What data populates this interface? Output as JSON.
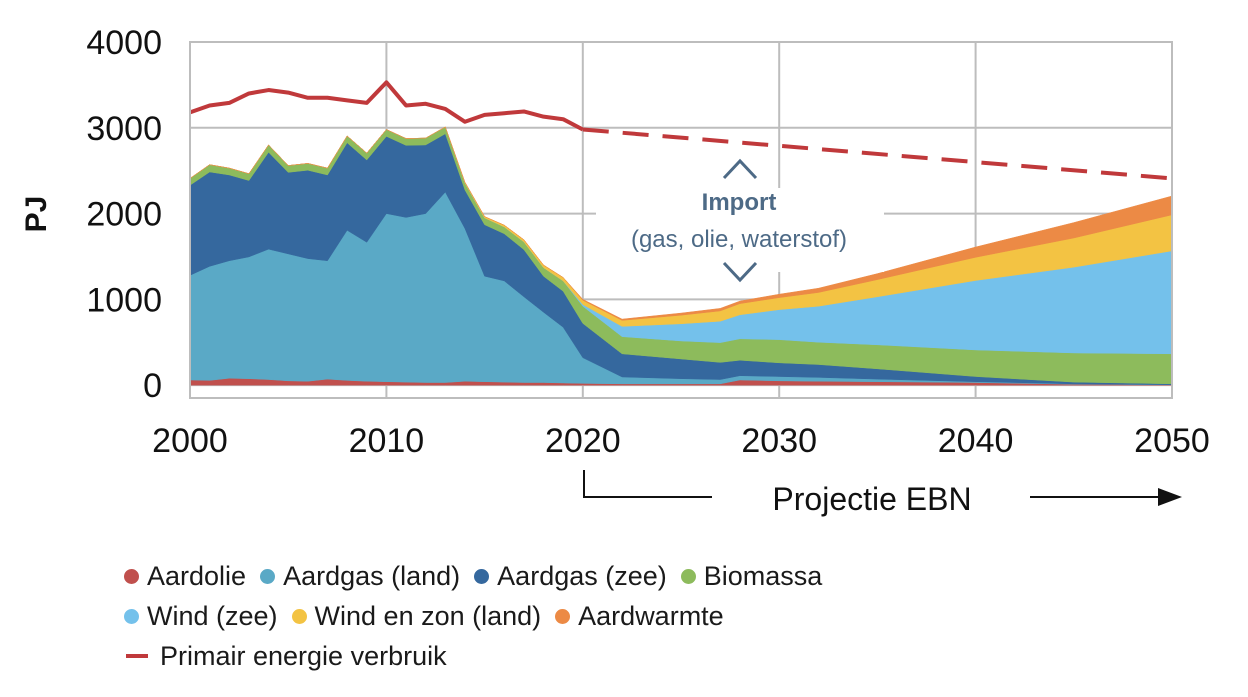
{
  "chart_data": {
    "type": "area",
    "stacked": true,
    "ylabel": "PJ",
    "ylim": [
      -150,
      4000
    ],
    "xlim": [
      2000,
      2050
    ],
    "x_ticks": [
      "2000",
      "2010",
      "2020",
      "2030",
      "2040",
      "2050"
    ],
    "y_ticks": [
      "0",
      "1000",
      "2000",
      "3000",
      "4000"
    ],
    "grid": true,
    "x": [
      2000,
      2001,
      2002,
      2003,
      2004,
      2005,
      2006,
      2007,
      2008,
      2009,
      2010,
      2011,
      2012,
      2013,
      2014,
      2015,
      2016,
      2017,
      2018,
      2019,
      2020,
      2022,
      2025,
      2027,
      2028,
      2030,
      2032,
      2035,
      2040,
      2045,
      2050
    ],
    "series": [
      {
        "name": "Aardolie",
        "color": "#c0504d",
        "values": [
          60,
          55,
          80,
          75,
          65,
          50,
          45,
          70,
          55,
          45,
          40,
          35,
          30,
          30,
          45,
          40,
          35,
          30,
          30,
          25,
          20,
          15,
          15,
          15,
          60,
          50,
          45,
          40,
          30,
          10,
          5
        ]
      },
      {
        "name": "Aardgas (land)",
        "color": "#5aa9c6",
        "values": [
          1220,
          1330,
          1370,
          1420,
          1520,
          1480,
          1430,
          1380,
          1750,
          1620,
          1960,
          1920,
          1970,
          2220,
          1780,
          1230,
          1180,
          1000,
          820,
          650,
          300,
          80,
          60,
          50,
          50,
          50,
          45,
          30,
          10,
          5,
          0
        ]
      },
      {
        "name": "Aardgas (zee)",
        "color": "#35689e",
        "values": [
          1050,
          1100,
          1000,
          890,
          1130,
          950,
          1030,
          1000,
          1020,
          960,
          900,
          840,
          800,
          680,
          450,
          600,
          550,
          550,
          420,
          420,
          400,
          270,
          230,
          200,
          180,
          160,
          150,
          120,
          60,
          20,
          10
        ]
      },
      {
        "name": "Biomassa",
        "color": "#8dbb5c",
        "values": [
          80,
          85,
          80,
          80,
          85,
          80,
          80,
          80,
          80,
          80,
          80,
          80,
          80,
          80,
          80,
          80,
          80,
          90,
          100,
          120,
          200,
          200,
          210,
          230,
          250,
          270,
          260,
          280,
          310,
          340,
          350
        ]
      },
      {
        "name": "Wind (zee)",
        "color": "#74c1eb",
        "values": [
          0,
          0,
          0,
          0,
          0,
          0,
          0,
          0,
          0,
          0,
          0,
          0,
          0,
          0,
          0,
          0,
          0,
          0,
          0,
          0,
          20,
          120,
          200,
          250,
          280,
          350,
          420,
          560,
          810,
          1000,
          1200
        ]
      },
      {
        "name": "Wind en zon (land)",
        "color": "#f3c343",
        "values": [
          0,
          0,
          0,
          0,
          0,
          0,
          0,
          0,
          0,
          0,
          0,
          0,
          0,
          0,
          10,
          15,
          20,
          25,
          30,
          40,
          50,
          70,
          100,
          120,
          130,
          140,
          160,
          200,
          270,
          340,
          420
        ]
      },
      {
        "name": "Aardwarmte",
        "color": "#ec8a45",
        "values": [
          0,
          0,
          0,
          0,
          0,
          0,
          0,
          0,
          0,
          0,
          0,
          0,
          0,
          0,
          0,
          0,
          0,
          0,
          0,
          0,
          10,
          15,
          25,
          30,
          30,
          40,
          50,
          70,
          120,
          180,
          220
        ]
      }
    ],
    "line": {
      "name": "Primair energie verbruik",
      "color": "#c0393b",
      "x": [
        2000,
        2001,
        2002,
        2003,
        2004,
        2005,
        2006,
        2007,
        2008,
        2009,
        2010,
        2011,
        2012,
        2013,
        2014,
        2015,
        2016,
        2017,
        2018,
        2019,
        2020
      ],
      "values": [
        3180,
        3260,
        3290,
        3400,
        3440,
        3410,
        3350,
        3350,
        3320,
        3290,
        3530,
        3260,
        3280,
        3220,
        3070,
        3150,
        3170,
        3190,
        3130,
        3100,
        2980
      ],
      "projection": {
        "x": [
          2020,
          2050
        ],
        "values": [
          2980,
          2410
        ]
      }
    },
    "annotation": {
      "title": "Import",
      "subtitle": "(gas, olie, waterstof)"
    },
    "projection_label": "Projectie EBN",
    "legend_position": "bottom"
  }
}
